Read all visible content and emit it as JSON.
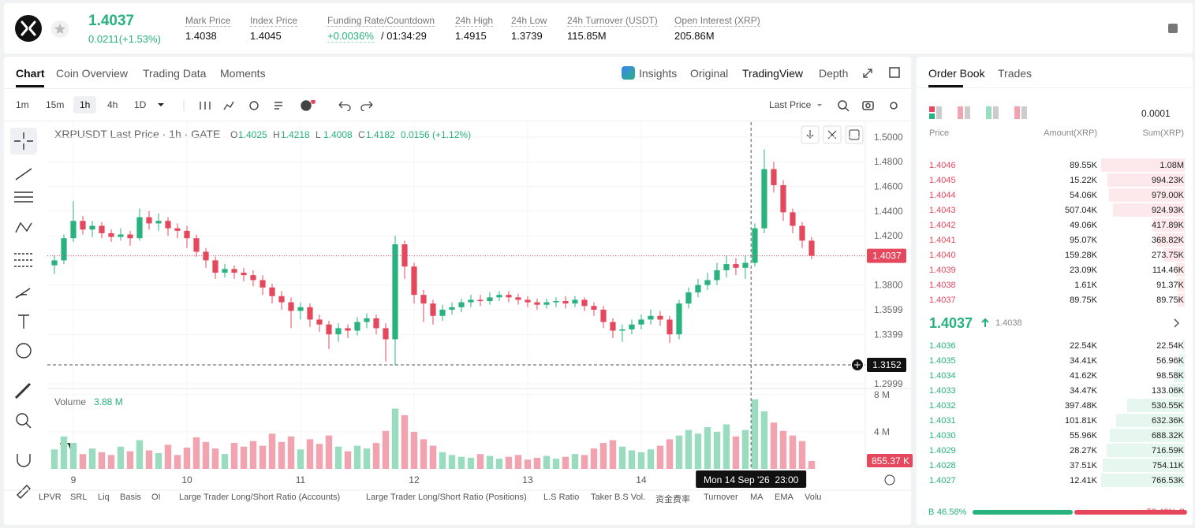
{
  "header": {
    "price": "1.4037",
    "change": "0.0211(+1.53%)",
    "stats": [
      {
        "label": "Mark Price",
        "value": "1.4038"
      },
      {
        "label": "Index Price",
        "value": "1.4045"
      },
      {
        "label": "Funding Rate/Countdown",
        "value": "+0.0036%",
        "extra": "/ 01:34:29"
      },
      {
        "label": "24h High",
        "value": "1.4915"
      },
      {
        "label": "24h Low",
        "value": "1.3739"
      },
      {
        "label": "24h Turnover (USDT)",
        "value": "115.85M"
      },
      {
        "label": "Open Interest (XRP)",
        "value": "205.86M"
      }
    ]
  },
  "tabs": [
    "Chart",
    "Coin Overview",
    "Trading Data",
    "Moments"
  ],
  "views": [
    "Insights",
    "Original",
    "TradingView",
    "Depth"
  ],
  "intervals": [
    "1m",
    "15m",
    "1h",
    "4h",
    "1D"
  ],
  "price_source": "Last Price",
  "indicators": [
    "LPVR",
    "SRL",
    "Liq",
    "Basis",
    "OI",
    "Large Trader Long/Short Ratio (Accounts)",
    "Large Trader Long/Short Ratio (Positions)",
    "L.S Ratio",
    "Taker B.S Vol.",
    "资金费率",
    "Turnover",
    "MA",
    "EMA",
    "Volu"
  ],
  "chart_data": {
    "type": "candlestick",
    "title": "XRPUSDT Last Price · 1h · GATE",
    "legend": [
      {
        "key": "O",
        "value": "1.4025"
      },
      {
        "key": "H",
        "value": "1.4218"
      },
      {
        "key": "L",
        "value": "1.4008"
      },
      {
        "key": "C",
        "value": "1.4182"
      }
    ],
    "legend_change": "0.0156 (+1.12%)",
    "up_color": "#27b27e",
    "down_color": "#e5475d",
    "vol_up_color": "#9adcc0",
    "vol_down_color": "#f3a3b0",
    "ohlc": [
      [
        1.396,
        1.404,
        1.389,
        1.4
      ],
      [
        1.4,
        1.421,
        1.397,
        1.418
      ],
      [
        1.418,
        1.448,
        1.415,
        1.432
      ],
      [
        1.432,
        1.436,
        1.421,
        1.425
      ],
      [
        1.425,
        1.432,
        1.419,
        1.428
      ],
      [
        1.428,
        1.431,
        1.418,
        1.422
      ],
      [
        1.422,
        1.425,
        1.415,
        1.419
      ],
      [
        1.419,
        1.426,
        1.416,
        1.421
      ],
      [
        1.421,
        1.424,
        1.412,
        1.418
      ],
      [
        1.418,
        1.442,
        1.416,
        1.435
      ],
      [
        1.435,
        1.44,
        1.425,
        1.43
      ],
      [
        1.43,
        1.438,
        1.424,
        1.432
      ],
      [
        1.432,
        1.435,
        1.42,
        1.426
      ],
      [
        1.426,
        1.43,
        1.418,
        1.424
      ],
      [
        1.424,
        1.428,
        1.41,
        1.418
      ],
      [
        1.418,
        1.421,
        1.403,
        1.407
      ],
      [
        1.407,
        1.41,
        1.394,
        1.4
      ],
      [
        1.4,
        1.403,
        1.385,
        1.39
      ],
      [
        1.39,
        1.397,
        1.386,
        1.393
      ],
      [
        1.393,
        1.396,
        1.385,
        1.39
      ],
      [
        1.39,
        1.394,
        1.383,
        1.388
      ],
      [
        1.388,
        1.392,
        1.379,
        1.384
      ],
      [
        1.384,
        1.388,
        1.372,
        1.378
      ],
      [
        1.378,
        1.381,
        1.365,
        1.371
      ],
      [
        1.371,
        1.375,
        1.36,
        1.366
      ],
      [
        1.366,
        1.37,
        1.345,
        1.359
      ],
      [
        1.359,
        1.366,
        1.352,
        1.362
      ],
      [
        1.362,
        1.365,
        1.346,
        1.352
      ],
      [
        1.352,
        1.356,
        1.342,
        1.348
      ],
      [
        1.348,
        1.351,
        1.328,
        1.34
      ],
      [
        1.34,
        1.349,
        1.334,
        1.345
      ],
      [
        1.345,
        1.348,
        1.337,
        1.343
      ],
      [
        1.343,
        1.354,
        1.339,
        1.35
      ],
      [
        1.35,
        1.357,
        1.345,
        1.353
      ],
      [
        1.353,
        1.356,
        1.34,
        1.345
      ],
      [
        1.345,
        1.349,
        1.318,
        1.336
      ],
      [
        1.336,
        1.42,
        1.315,
        1.413
      ],
      [
        1.413,
        1.416,
        1.385,
        1.395
      ],
      [
        1.395,
        1.398,
        1.365,
        1.372
      ],
      [
        1.372,
        1.376,
        1.35,
        1.365
      ],
      [
        1.365,
        1.368,
        1.348,
        1.355
      ],
      [
        1.355,
        1.364,
        1.351,
        1.36
      ],
      [
        1.36,
        1.366,
        1.356,
        1.362
      ],
      [
        1.362,
        1.369,
        1.358,
        1.366
      ],
      [
        1.366,
        1.372,
        1.362,
        1.368
      ],
      [
        1.368,
        1.372,
        1.363,
        1.367
      ],
      [
        1.367,
        1.374,
        1.364,
        1.37
      ],
      [
        1.37,
        1.375,
        1.367,
        1.372
      ],
      [
        1.372,
        1.375,
        1.366,
        1.37
      ],
      [
        1.37,
        1.373,
        1.364,
        1.368
      ],
      [
        1.368,
        1.371,
        1.362,
        1.366
      ],
      [
        1.366,
        1.369,
        1.36,
        1.364
      ],
      [
        1.364,
        1.369,
        1.361,
        1.366
      ],
      [
        1.366,
        1.37,
        1.362,
        1.367
      ],
      [
        1.367,
        1.371,
        1.361,
        1.365
      ],
      [
        1.365,
        1.371,
        1.362,
        1.368
      ],
      [
        1.368,
        1.37,
        1.359,
        1.363
      ],
      [
        1.363,
        1.366,
        1.355,
        1.36
      ],
      [
        1.36,
        1.363,
        1.345,
        1.35
      ],
      [
        1.35,
        1.353,
        1.337,
        1.343
      ],
      [
        1.343,
        1.348,
        1.334,
        1.344
      ],
      [
        1.344,
        1.352,
        1.34,
        1.348
      ],
      [
        1.348,
        1.356,
        1.344,
        1.352
      ],
      [
        1.352,
        1.36,
        1.348,
        1.355
      ],
      [
        1.355,
        1.359,
        1.347,
        1.352
      ],
      [
        1.352,
        1.355,
        1.333,
        1.34
      ],
      [
        1.34,
        1.368,
        1.336,
        1.365
      ],
      [
        1.365,
        1.378,
        1.361,
        1.374
      ],
      [
        1.374,
        1.385,
        1.37,
        1.38
      ],
      [
        1.38,
        1.39,
        1.376,
        1.384
      ],
      [
        1.384,
        1.398,
        1.38,
        1.392
      ],
      [
        1.392,
        1.404,
        1.386,
        1.397
      ],
      [
        1.397,
        1.402,
        1.388,
        1.394
      ],
      [
        1.394,
        1.404,
        1.385,
        1.398
      ],
      [
        1.398,
        1.43,
        1.395,
        1.426
      ],
      [
        1.426,
        1.49,
        1.422,
        1.474
      ],
      [
        1.474,
        1.48,
        1.455,
        1.461
      ],
      [
        1.461,
        1.465,
        1.432,
        1.439
      ],
      [
        1.439,
        1.442,
        1.422,
        1.428
      ],
      [
        1.428,
        1.431,
        1.41,
        1.416
      ],
      [
        1.416,
        1.419,
        1.401,
        1.4037
      ]
    ],
    "volume": [
      2.1,
      3.5,
      2.8,
      1.6,
      2.2,
      1.8,
      1.5,
      2.4,
      1.9,
      3.1,
      2.0,
      1.7,
      2.6,
      1.5,
      2.3,
      3.4,
      2.9,
      2.2,
      1.6,
      2.8,
      2.4,
      3.0,
      2.5,
      3.8,
      2.9,
      3.5,
      2.1,
      3.2,
      2.7,
      3.6,
      2.4,
      1.9,
      2.5,
      2.2,
      2.8,
      4.1,
      6.5,
      5.8,
      4.0,
      3.2,
      2.5,
      1.8,
      1.5,
      1.3,
      1.2,
      1.6,
      1.4,
      1.1,
      1.3,
      1.5,
      1.0,
      1.2,
      1.4,
      1.1,
      1.3,
      1.6,
      1.5,
      2.2,
      2.8,
      3.1,
      2.4,
      2.0,
      1.8,
      2.1,
      2.5,
      3.2,
      3.6,
      4.2,
      3.8,
      4.5,
      4.0,
      4.8,
      3.5,
      4.2,
      7.5,
      6.2,
      5.0,
      4.1,
      3.6,
      3.0,
      0.85537
    ],
    "volume_title": "Volume",
    "volume_value": "3.88 M",
    "last_volume_label": "855.37 K",
    "xlim": [
      -0.75,
      85.67
    ],
    "xticks": [
      {
        "value": 2,
        "label": "9"
      },
      {
        "value": 14,
        "label": "10"
      },
      {
        "value": 26,
        "label": "11"
      },
      {
        "value": 38,
        "label": "12"
      },
      {
        "value": 50,
        "label": "13"
      },
      {
        "value": 62,
        "label": "14"
      }
    ],
    "ylim": [
      1.2967,
      1.5121
    ],
    "yticks": [
      {
        "value": 1.5,
        "label": "1.5000"
      },
      {
        "value": 1.48,
        "label": "1.4800"
      },
      {
        "value": 1.46,
        "label": "1.4600"
      },
      {
        "value": 1.44,
        "label": "1.4400"
      },
      {
        "value": 1.42,
        "label": "1.4200"
      },
      {
        "value": 1.38,
        "label": "1.3800"
      },
      {
        "value": 1.3599,
        "label": "1.3599"
      },
      {
        "value": 1.3399,
        "label": "1.3399"
      },
      {
        "value": 1.2999,
        "label": "1.2999"
      }
    ],
    "vlim": [
      0,
      8.5
    ],
    "vticks": [
      {
        "value": 8,
        "label": "8 M"
      },
      {
        "value": 4,
        "label": "4 M"
      }
    ],
    "last_price": 1.4037,
    "crosshair": {
      "x": 73.6,
      "price": 1.3152,
      "time": "Mon 14 Sep '26  23:00"
    },
    "grid": true
  },
  "order_book": {
    "tabs": [
      "Order Book",
      "Trades"
    ],
    "precision": "0.0001",
    "columns": [
      "Price",
      "Amount(XRP)",
      "Sum(XRP)"
    ],
    "asks": [
      [
        "1.4046",
        "89.55K",
        "1.08M"
      ],
      [
        "1.4045",
        "15.22K",
        "994.23K"
      ],
      [
        "1.4044",
        "54.06K",
        "979.00K"
      ],
      [
        "1.4043",
        "507.04K",
        "924.93K"
      ],
      [
        "1.4042",
        "49.06K",
        "417.89K"
      ],
      [
        "1.4041",
        "95.07K",
        "368.82K"
      ],
      [
        "1.4040",
        "159.28K",
        "273.75K"
      ],
      [
        "1.4039",
        "23.09K",
        "114.46K"
      ],
      [
        "1.4038",
        "1.61K",
        "91.37K"
      ],
      [
        "1.4037",
        "89.75K",
        "89.75K"
      ]
    ],
    "mid_price": "1.4037",
    "mark": "1.4038",
    "bids": [
      [
        "1.4036",
        "22.54K",
        "22.54K"
      ],
      [
        "1.4035",
        "34.41K",
        "56.96K"
      ],
      [
        "1.4034",
        "41.62K",
        "98.58K"
      ],
      [
        "1.4033",
        "34.47K",
        "133.06K"
      ],
      [
        "1.4032",
        "397.48K",
        "530.55K"
      ],
      [
        "1.4031",
        "101.81K",
        "632.36K"
      ],
      [
        "1.4030",
        "55.96K",
        "688.32K"
      ],
      [
        "1.4029",
        "28.27K",
        "716.59K"
      ],
      [
        "1.4028",
        "37.51K",
        "754.11K"
      ],
      [
        "1.4027",
        "12.41K",
        "766.53K"
      ]
    ],
    "buy": {
      "key": "B",
      "value": 46.58,
      "label": "46.58%"
    },
    "sell": {
      "key": "S",
      "value": 53.42,
      "label": "53.42%"
    }
  }
}
